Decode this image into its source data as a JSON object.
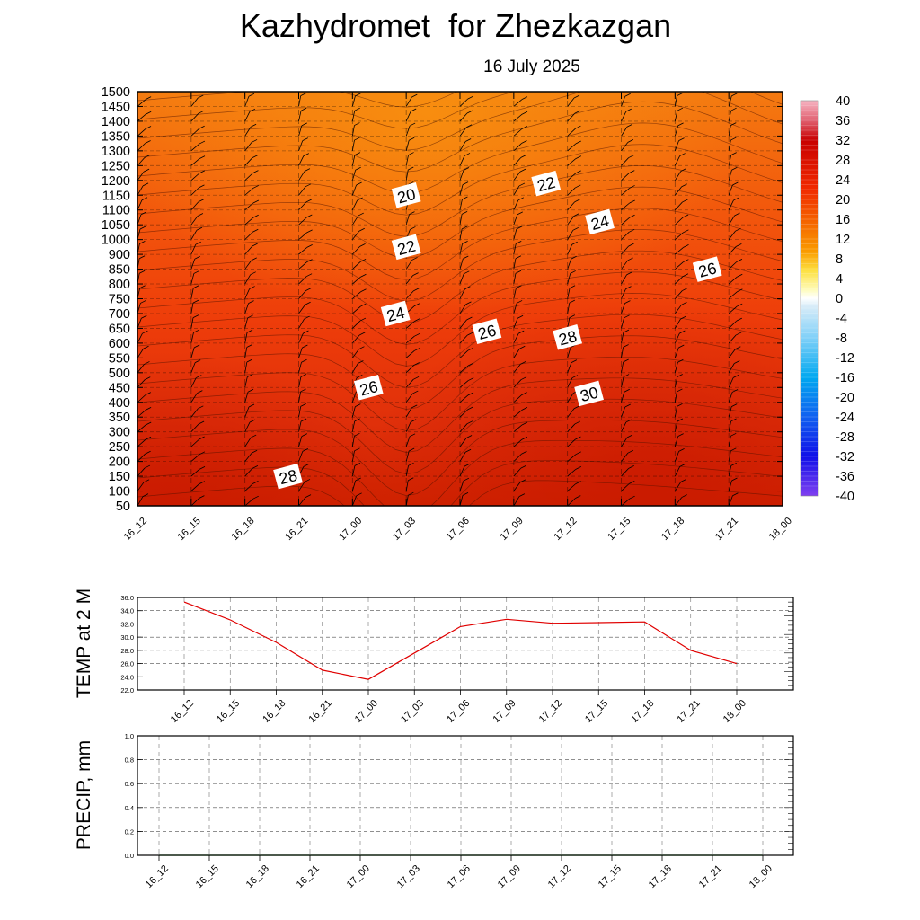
{
  "title": "Kazhydromet  for Zhezkazgan",
  "subtitle": "16 July 2025",
  "chart_data": [
    {
      "type": "heatmap",
      "name": "vertical-temperature-cross-section",
      "x_categories": [
        "16_12",
        "16_15",
        "16_18",
        "16_21",
        "17_00",
        "17_03",
        "17_06",
        "17_09",
        "17_12",
        "17_15",
        "17_18",
        "17_21",
        "18_00"
      ],
      "y_ticks": [
        50,
        100,
        150,
        200,
        250,
        300,
        350,
        400,
        450,
        500,
        550,
        600,
        650,
        700,
        750,
        800,
        850,
        900,
        1000,
        1050,
        1100,
        1150,
        1200,
        1250,
        1300,
        1350,
        1400,
        1450,
        1500
      ],
      "colorbar_ticks": [
        40,
        36,
        32,
        28,
        24,
        20,
        16,
        12,
        8,
        4,
        0,
        -4,
        -8,
        -12,
        -16,
        -20,
        -24,
        -28,
        -32,
        -36,
        -40
      ],
      "contour_labels": [
        {
          "text": "20",
          "time": 5.0,
          "level": 1150
        },
        {
          "text": "22",
          "time": 5.0,
          "level": 950
        },
        {
          "text": "24",
          "time": 4.8,
          "level": 700
        },
        {
          "text": "26",
          "time": 4.3,
          "level": 450
        },
        {
          "text": "28",
          "time": 2.8,
          "level": 150
        },
        {
          "text": "26",
          "time": 6.5,
          "level": 640
        },
        {
          "text": "22",
          "time": 7.6,
          "level": 1190
        },
        {
          "text": "24",
          "time": 8.6,
          "level": 1060
        },
        {
          "text": "26",
          "time": 10.6,
          "level": 850
        },
        {
          "text": "28",
          "time": 8.0,
          "level": 620
        },
        {
          "text": "30",
          "time": 8.4,
          "level": 430
        }
      ],
      "colors": {
        "cold_low": "#d12400",
        "mid": "#f04a0a",
        "warm_high": "#f8880e"
      }
    },
    {
      "type": "line",
      "name": "temp-2m",
      "ylabel": "TEMP at 2 M",
      "categories": [
        "16_12",
        "16_15",
        "16_18",
        "16_21",
        "17_00",
        "17_03",
        "17_06",
        "17_09",
        "17_12",
        "17_15",
        "17_18",
        "17_21",
        "18_00"
      ],
      "values": [
        35.3,
        32.6,
        29.2,
        25.0,
        23.6,
        27.6,
        31.6,
        32.7,
        32.1,
        32.2,
        32.3,
        28.0,
        26.0
      ],
      "ylim": [
        22.0,
        36.0
      ],
      "y_ticks": [
        "22.0",
        "24.0",
        "26.0",
        "28.0",
        "30.0",
        "32.0",
        "34.0",
        "36.0"
      ],
      "color": "#e00000"
    },
    {
      "type": "line",
      "name": "precip",
      "ylabel": "PRECIP, mm",
      "categories": [
        "16_12",
        "16_15",
        "16_18",
        "16_21",
        "17_00",
        "17_03",
        "17_06",
        "17_09",
        "17_12",
        "17_15",
        "17_18",
        "17_21",
        "18_00"
      ],
      "values": [
        0,
        0,
        0,
        0,
        0,
        0,
        0,
        0,
        0,
        0,
        0,
        0,
        0
      ],
      "ylim": [
        0.0,
        1.0
      ],
      "y_ticks": [
        "0.0",
        "0.2",
        "0.4",
        "0.6",
        "0.8",
        "1.0"
      ],
      "color": "#008000"
    }
  ]
}
